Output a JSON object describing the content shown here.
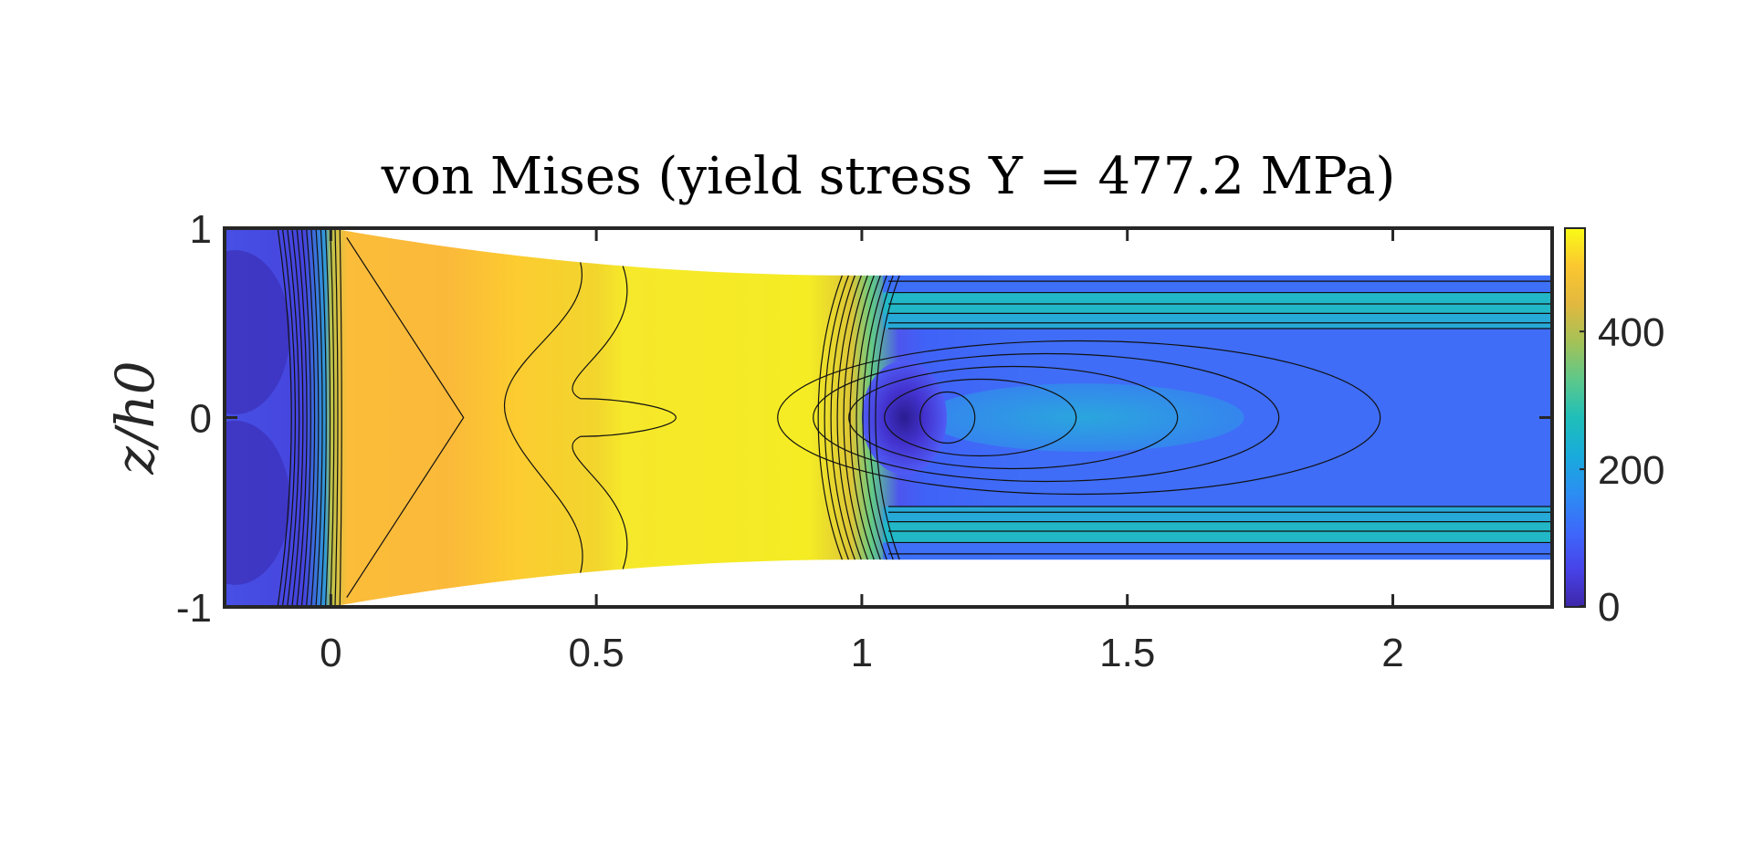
{
  "chart_data": {
    "type": "heatmap",
    "title": "von Mises (yield stress Y = 477.2 MPa)",
    "xlabel": "",
    "ylabel": "z/h0",
    "xlim": [
      -0.2,
      2.3
    ],
    "ylim": [
      -1,
      1
    ],
    "x_ticks": [
      "0",
      "0.5",
      "1",
      "1.5",
      "2"
    ],
    "x_tick_values": [
      0,
      0.5,
      1,
      1.5,
      2
    ],
    "y_ticks": [
      "1",
      "0",
      "-1"
    ],
    "y_tick_values": [
      1,
      0,
      -1
    ],
    "colorbar": {
      "range": [
        0,
        550
      ],
      "ticks": [
        "400",
        "200",
        "0"
      ],
      "tick_values": [
        400,
        200,
        0
      ],
      "colormap": "parula"
    },
    "geometry": {
      "entry_half_height": 1.0,
      "exit_half_height": 0.75,
      "die_entry_x": 0,
      "die_exit_x": 1.0
    },
    "regions": [
      {
        "x": [
          -0.2,
          0.0
        ],
        "level": "low",
        "approx_value": 60
      },
      {
        "x": [
          0.0,
          0.5
        ],
        "level": "high",
        "approx_value": 470
      },
      {
        "x": [
          0.5,
          1.0
        ],
        "level": "yield",
        "approx_value": 530
      },
      {
        "x": [
          1.05,
          1.12
        ],
        "level": "minimum",
        "approx_value": 20
      },
      {
        "x": [
          1.1,
          2.3
        ],
        "level": "elastic",
        "approx_value": 130
      }
    ]
  }
}
